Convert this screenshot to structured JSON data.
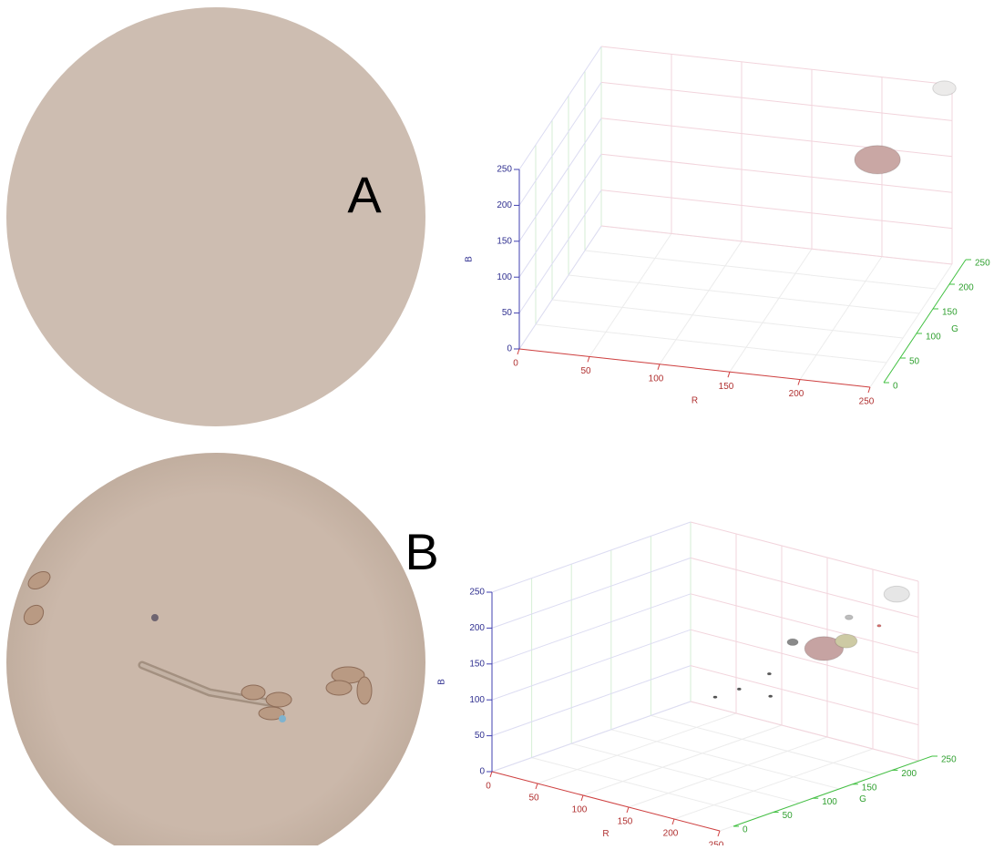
{
  "chart_data": [
    {
      "type": "scatter3d",
      "panel": "A",
      "xlabel": "R",
      "ylabel": "G",
      "zlabel": "B",
      "xlim": [
        0,
        250
      ],
      "ylim": [
        0,
        250
      ],
      "zlim": [
        0,
        250
      ],
      "xticks": [
        0,
        50,
        100,
        150,
        200,
        250
      ],
      "yticks": [
        0,
        50,
        100,
        150,
        200,
        250
      ],
      "zticks": [
        0,
        50,
        100,
        150,
        200,
        250
      ],
      "grid": true,
      "x": [
        205,
        248
      ],
      "y": [
        215,
        235
      ],
      "z": [
        160,
        255
      ],
      "sizes": [
        70,
        18
      ],
      "colors": [
        "#c9a7a4",
        "#ecebea"
      ]
    },
    {
      "type": "scatter3d",
      "panel": "B",
      "xlabel": "R",
      "ylabel": "G",
      "zlabel": "B",
      "xlim": [
        0,
        250
      ],
      "ylim": [
        0,
        250
      ],
      "zlim": [
        0,
        250
      ],
      "xticks": [
        0,
        50,
        100,
        150,
        200,
        250
      ],
      "yticks": [
        0,
        50,
        100,
        150,
        200,
        250
      ],
      "zticks": [
        0,
        50,
        100,
        150,
        200,
        250
      ],
      "grid": true,
      "x": [
        190,
        210,
        235,
        160,
        200,
        130,
        110,
        140,
        95,
        220
      ],
      "y": [
        200,
        205,
        240,
        195,
        220,
        200,
        185,
        190,
        172,
        235
      ],
      "z": [
        156,
        171,
        231,
        157,
        195,
        101,
        79,
        77,
        68,
        184
      ],
      "sizes": [
        50,
        16,
        22,
        4,
        2,
        0.5,
        0.5,
        0.5,
        0.5,
        0.5
      ],
      "colors": [
        "#c6a3a2",
        "#cdcaa4",
        "#e6e6e6",
        "#8a8a8a",
        "#bdbdbd",
        "#555555",
        "#555555",
        "#555555",
        "#555555",
        "#d9706e"
      ]
    }
  ]
}
